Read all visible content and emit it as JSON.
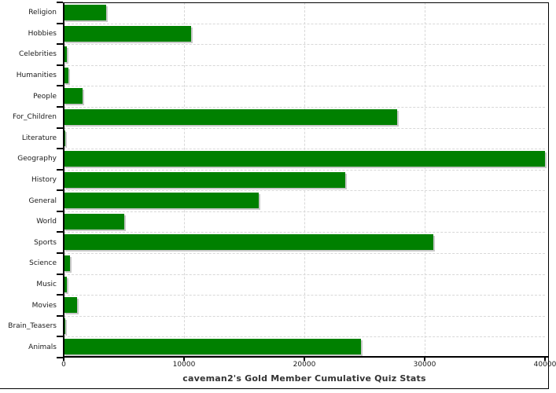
{
  "chart_data": {
    "type": "bar",
    "orientation": "horizontal",
    "title": "caveman2's Gold Member Cumulative Quiz Stats",
    "categories": [
      "Religion",
      "Hobbies",
      "Celebrities",
      "Humanities",
      "People",
      "For_Children",
      "Literature",
      "Geography",
      "History",
      "General",
      "World",
      "Sports",
      "Science",
      "Music",
      "Movies",
      "Brain_Teasers",
      "Animals"
    ],
    "values": [
      3500,
      10600,
      280,
      410,
      1550,
      27700,
      100,
      40000,
      23400,
      16200,
      5000,
      30700,
      520,
      280,
      1100,
      130,
      24700
    ],
    "xlabel": "",
    "ylabel": "",
    "xlim": [
      0,
      40000
    ],
    "x_ticks": [
      0,
      10000,
      20000,
      30000,
      40000
    ],
    "x_tick_labels": [
      "0",
      "10000",
      "20000",
      "30000",
      "40000"
    ],
    "grid": true,
    "legend": "none",
    "bar_color": "#008000",
    "shadow_color": "#c9c9c9",
    "grid_color": "#d8d8d8",
    "axis_color": "#000000",
    "background_color": "#ffffff"
  }
}
